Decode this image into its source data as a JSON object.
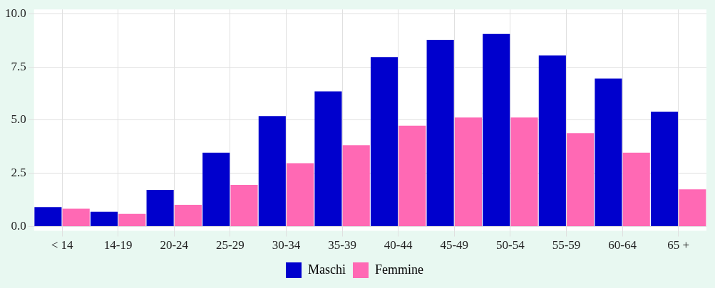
{
  "chart_data": {
    "type": "bar",
    "categories": [
      "< 14",
      "14-19",
      "20-24",
      "25-29",
      "30-34",
      "35-39",
      "40-44",
      "45-49",
      "50-54",
      "55-59",
      "60-64",
      "65 +"
    ],
    "series": [
      {
        "name": "Maschi",
        "color": "#0000cd",
        "values": [
          0.91,
          0.7,
          1.72,
          3.47,
          5.19,
          6.35,
          7.96,
          8.77,
          9.05,
          8.04,
          6.95,
          5.4
        ]
      },
      {
        "name": "Femmine",
        "color": "#ff69b4",
        "values": [
          0.84,
          0.6,
          1.02,
          1.96,
          2.98,
          3.82,
          4.74,
          5.12,
          5.12,
          4.39,
          3.47,
          1.75
        ]
      }
    ],
    "ylim": [
      -0.2,
      10.2
    ],
    "yticks": [
      {
        "value": 0,
        "label": "0.0"
      },
      {
        "value": 2.5,
        "label": "2.5"
      },
      {
        "value": 5,
        "label": "5.0"
      },
      {
        "value": 7.5,
        "label": "7.5"
      },
      {
        "value": 10,
        "label": "10.0"
      }
    ],
    "grid": true,
    "legend": "bottom"
  }
}
